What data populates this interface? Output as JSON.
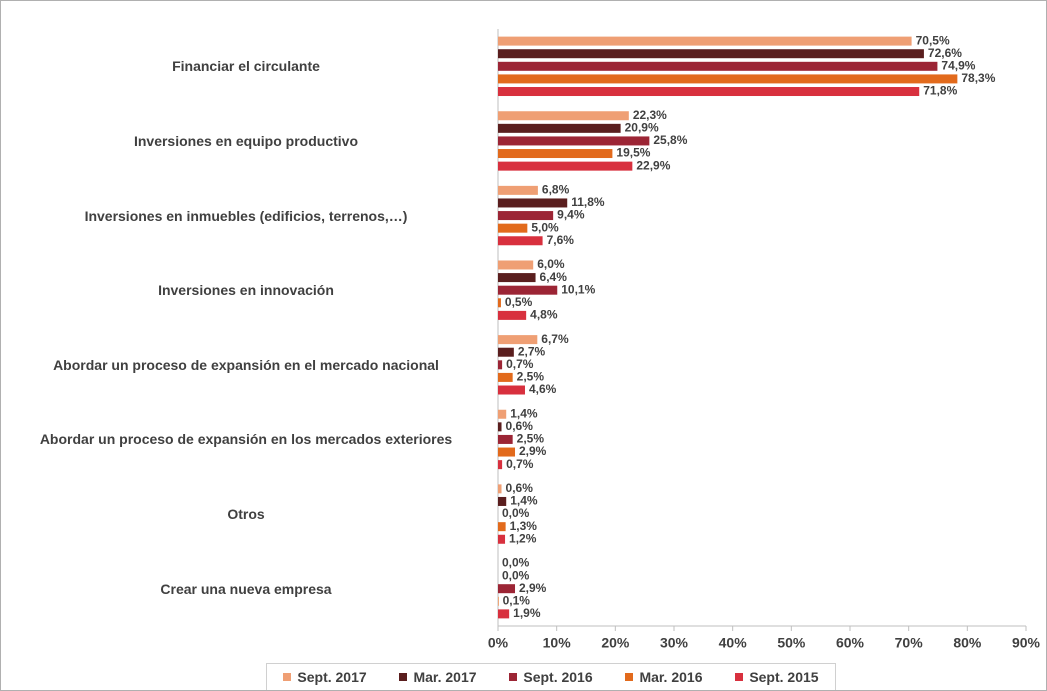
{
  "chart_data": {
    "type": "hbar",
    "categories": [
      "Financiar el circulante",
      "Inversiones en equipo productivo",
      "Inversiones en inmuebles (edificios, terrenos,…)",
      "Inversiones en innovación",
      "Abordar un proceso de expansión en el mercado nacional",
      "Abordar un proceso de expansión en los mercados exteriores",
      "Otros",
      "Crear una nueva empresa"
    ],
    "series": [
      {
        "name": "Sept. 2017",
        "color": "#ef9f74",
        "values": [
          70.5,
          22.3,
          6.8,
          6.0,
          6.7,
          1.4,
          0.6,
          0.0
        ],
        "value_labels": [
          "70,5%",
          "22,3%",
          "6,8%",
          "6,0%",
          "6,7%",
          "1,4%",
          "0,6%",
          "0,0%"
        ]
      },
      {
        "name": "Mar. 2017",
        "color": "#5a1e1e",
        "values": [
          72.6,
          20.9,
          11.8,
          6.4,
          2.7,
          0.6,
          1.4,
          0.0
        ],
        "value_labels": [
          "72,6%",
          "20,9%",
          "11,8%",
          "6,4%",
          "2,7%",
          "0,6%",
          "1,4%",
          "0,0%"
        ]
      },
      {
        "name": "Sept. 2016",
        "color": "#9c2535",
        "values": [
          74.9,
          25.8,
          9.4,
          10.1,
          0.7,
          2.5,
          0.0,
          2.9
        ],
        "value_labels": [
          "74,9%",
          "25,8%",
          "9,4%",
          "10,1%",
          "0,7%",
          "2,5%",
          "0,0%",
          "2,9%"
        ]
      },
      {
        "name": "Mar. 2016",
        "color": "#e26a1c",
        "values": [
          78.3,
          19.5,
          5.0,
          0.5,
          2.5,
          2.9,
          1.3,
          0.1
        ],
        "value_labels": [
          "78,3%",
          "19,5%",
          "5,0%",
          "0,5%",
          "2,5%",
          "2,9%",
          "1,3%",
          "0,1%"
        ]
      },
      {
        "name": "Sept. 2015",
        "color": "#d8303e",
        "values": [
          71.8,
          22.9,
          7.6,
          4.8,
          4.6,
          0.7,
          1.2,
          1.9
        ],
        "value_labels": [
          "71,8%",
          "22,9%",
          "7,6%",
          "4,8%",
          "4,6%",
          "0,7%",
          "1,2%",
          "1,9%"
        ]
      }
    ],
    "xlim": [
      0,
      90
    ],
    "xticks": [
      {
        "value": 0,
        "label": "0%"
      },
      {
        "value": 10,
        "label": "10%"
      },
      {
        "value": 20,
        "label": "20%"
      },
      {
        "value": 30,
        "label": "30%"
      },
      {
        "value": 40,
        "label": "40%"
      },
      {
        "value": 50,
        "label": "50%"
      },
      {
        "value": 60,
        "label": "60%"
      },
      {
        "value": 70,
        "label": "70%"
      },
      {
        "value": 80,
        "label": "80%"
      },
      {
        "value": 90,
        "label": "90%"
      }
    ],
    "legend": "bottom"
  }
}
